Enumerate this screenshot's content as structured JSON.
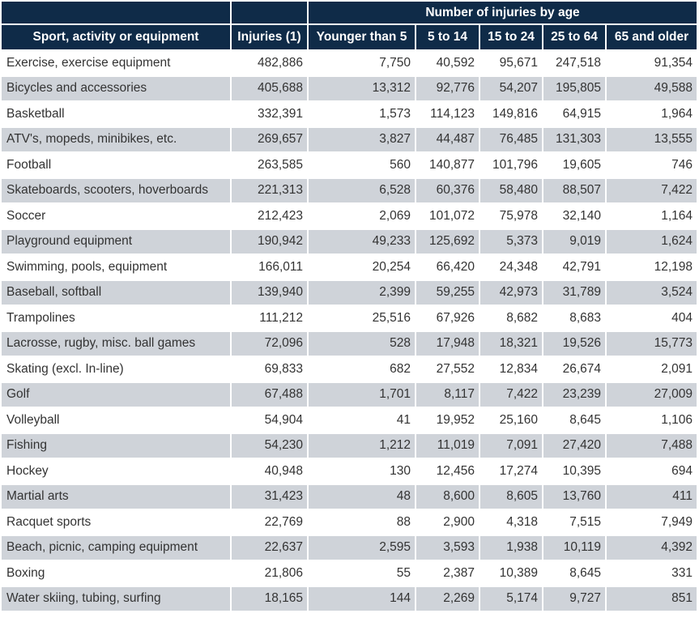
{
  "header": {
    "group_label": "Number of injuries by age",
    "columns": [
      "Sport, activity or equipment",
      "Injuries (1)",
      "Younger than 5",
      "5 to 14",
      "15 to 24",
      "25 to 64",
      "65 and older"
    ]
  },
  "rows": [
    [
      "Exercise, exercise equipment",
      "482,886",
      "7,750",
      "40,592",
      "95,671",
      "247,518",
      "91,354"
    ],
    [
      "Bicycles and accessories",
      "405,688",
      "13,312",
      "92,776",
      "54,207",
      "195,805",
      "49,588"
    ],
    [
      "Basketball",
      "332,391",
      "1,573",
      "114,123",
      "149,816",
      "64,915",
      "1,964"
    ],
    [
      "ATV's, mopeds, minibikes, etc.",
      "269,657",
      "3,827",
      "44,487",
      "76,485",
      "131,303",
      "13,555"
    ],
    [
      "Football",
      "263,585",
      "560",
      "140,877",
      "101,796",
      "19,605",
      "746"
    ],
    [
      "Skateboards, scooters, hoverboards",
      "221,313",
      "6,528",
      "60,376",
      "58,480",
      "88,507",
      "7,422"
    ],
    [
      "Soccer",
      "212,423",
      "2,069",
      "101,072",
      "75,978",
      "32,140",
      "1,164"
    ],
    [
      "Playground equipment",
      "190,942",
      "49,233",
      "125,692",
      "5,373",
      "9,019",
      "1,624"
    ],
    [
      "Swimming, pools, equipment",
      "166,011",
      "20,254",
      "66,420",
      "24,348",
      "42,791",
      "12,198"
    ],
    [
      "Baseball, softball",
      "139,940",
      "2,399",
      "59,255",
      "42,973",
      "31,789",
      "3,524"
    ],
    [
      "Trampolines",
      "111,212",
      "25,516",
      "67,926",
      "8,682",
      "8,683",
      "404"
    ],
    [
      "Lacrosse, rugby, misc. ball games",
      "72,096",
      "528",
      "17,948",
      "18,321",
      "19,526",
      "15,773"
    ],
    [
      "Skating (excl. In-line)",
      "69,833",
      "682",
      "27,552",
      "12,834",
      "26,674",
      "2,091"
    ],
    [
      "Golf",
      "67,488",
      "1,701",
      "8,117",
      "7,422",
      "23,239",
      "27,009"
    ],
    [
      "Volleyball",
      "54,904",
      "41",
      "19,952",
      "25,160",
      "8,645",
      "1,106"
    ],
    [
      "Fishing",
      "54,230",
      "1,212",
      "11,019",
      "7,091",
      "27,420",
      "7,488"
    ],
    [
      "Hockey",
      "40,948",
      "130",
      "12,456",
      "17,274",
      "10,395",
      "694"
    ],
    [
      "Martial arts",
      "31,423",
      "48",
      "8,600",
      "8,605",
      "13,760",
      "411"
    ],
    [
      "Racquet sports",
      "22,769",
      "88",
      "2,900",
      "4,318",
      "7,515",
      "7,949"
    ],
    [
      "Beach, picnic, camping equipment",
      "22,637",
      "2,595",
      "3,593",
      "1,938",
      "10,119",
      "4,392"
    ],
    [
      "Boxing",
      "21,806",
      "55",
      "2,387",
      "10,389",
      "8,645",
      "331"
    ],
    [
      "Water skiing, tubing, surfing",
      "18,165",
      "144",
      "2,269",
      "5,174",
      "9,727",
      "851"
    ]
  ]
}
